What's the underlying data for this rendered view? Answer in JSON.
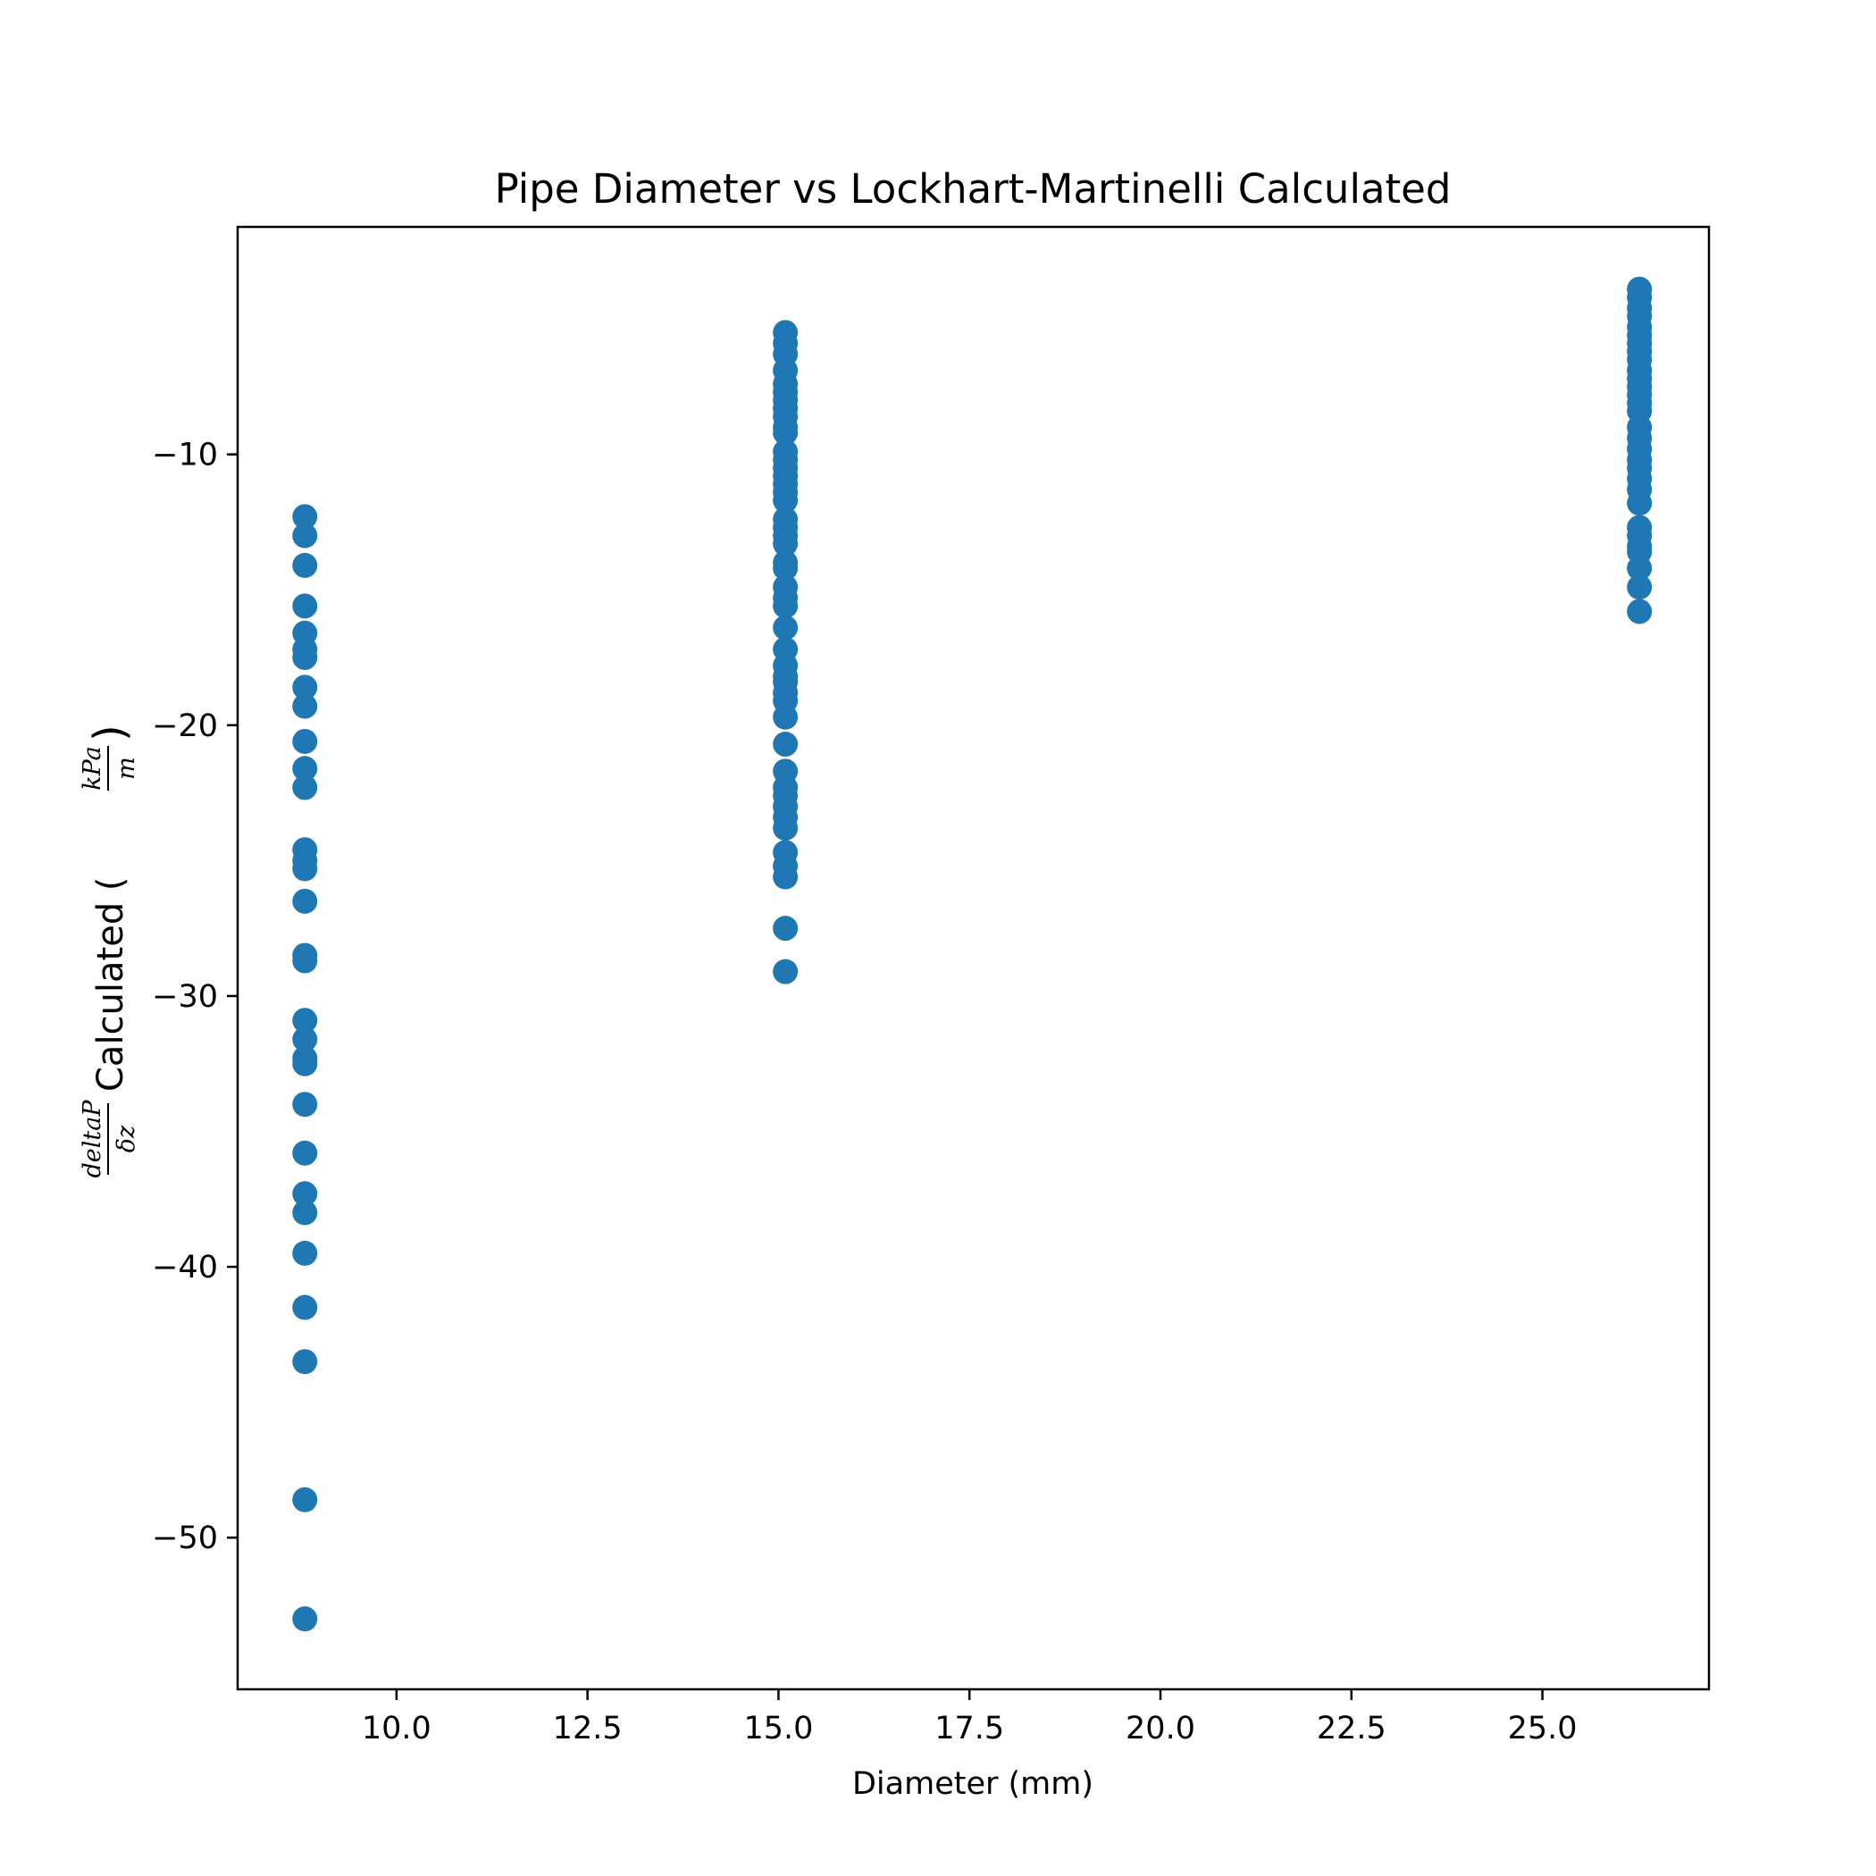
{
  "chart_data": {
    "type": "scatter",
    "title": "Pipe Diameter vs Lockhart-Martinelli Calculated",
    "xlabel": "Diameter (mm)",
    "ylabel": {
      "frac_num": "deltaP",
      "frac_den": "δz",
      "main": "Calculated (",
      "unit_num": "kPa",
      "unit_den": "m",
      "close": ")"
    },
    "xlim": [
      7.92,
      27.18
    ],
    "ylim": [
      -55.6,
      -1.6
    ],
    "xticks": [
      10.0,
      12.5,
      15.0,
      17.5,
      20.0,
      22.5,
      25.0
    ],
    "xtick_labels": [
      "10.0",
      "12.5",
      "15.0",
      "17.5",
      "20.0",
      "22.5",
      "25.0"
    ],
    "yticks": [
      -10,
      -20,
      -30,
      -40,
      -50
    ],
    "ytick_labels": [
      "−10",
      "−20",
      "−30",
      "−40",
      "−50"
    ],
    "grid": false,
    "marker_color": "#1f77b4",
    "series": [
      {
        "x": 8.8,
        "y": [
          -12.3,
          -13.0,
          -14.1,
          -15.6,
          -16.6,
          -17.2,
          -17.5,
          -18.6,
          -19.3,
          -20.6,
          -21.6,
          -22.3,
          -24.6,
          -25.0,
          -25.3,
          -26.5,
          -28.5,
          -28.7,
          -30.9,
          -31.6,
          -32.3,
          -32.5,
          -34.0,
          -35.8,
          -37.3,
          -38.0,
          -39.5,
          -41.5,
          -43.5,
          -48.6,
          -53.0
        ]
      },
      {
        "x": 15.09,
        "y": [
          -5.5,
          -5.9,
          -6.3,
          -6.9,
          -7.4,
          -7.7,
          -8.0,
          -8.3,
          -8.6,
          -9.0,
          -9.2,
          -9.9,
          -10.2,
          -10.5,
          -10.8,
          -11.1,
          -11.4,
          -11.7,
          -12.4,
          -12.7,
          -13.0,
          -13.3,
          -14.0,
          -14.2,
          -14.9,
          -15.3,
          -15.6,
          -16.4,
          -17.2,
          -17.8,
          -18.2,
          -18.4,
          -18.8,
          -19.1,
          -19.7,
          -20.7,
          -21.7,
          -22.3,
          -22.6,
          -23.0,
          -23.4,
          -23.8,
          -24.7,
          -25.2,
          -25.6,
          -27.5,
          -29.1
        ]
      },
      {
        "x": 26.27,
        "y": [
          -3.9,
          -4.2,
          -4.6,
          -4.9,
          -5.3,
          -5.6,
          -5.9,
          -6.2,
          -6.5,
          -6.9,
          -7.2,
          -7.5,
          -7.8,
          -8.1,
          -8.4,
          -9.0,
          -9.4,
          -9.8,
          -10.2,
          -10.5,
          -10.9,
          -11.3,
          -11.8,
          -12.7,
          -13.0,
          -13.4,
          -13.6,
          -14.2,
          -14.9,
          -15.8
        ]
      }
    ]
  }
}
